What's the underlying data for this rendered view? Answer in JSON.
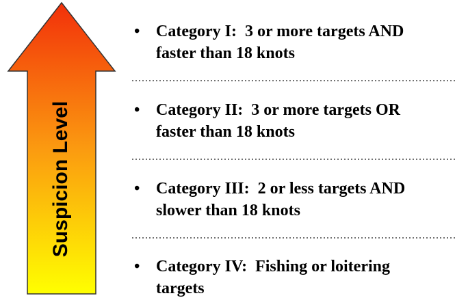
{
  "arrow": {
    "label": "Suspicion Level"
  },
  "items": [
    {
      "lines": [
        "Category I:  3 or more targets AND",
        "faster than 18 knots"
      ]
    },
    {
      "lines": [
        "Category II:  3 or more targets OR",
        "faster than 18 knots"
      ]
    },
    {
      "lines": [
        "Category III:  2 or less targets AND",
        "slower than 18 knots"
      ]
    },
    {
      "lines": [
        "Category IV:  Fishing or loitering",
        "targets"
      ]
    }
  ]
}
